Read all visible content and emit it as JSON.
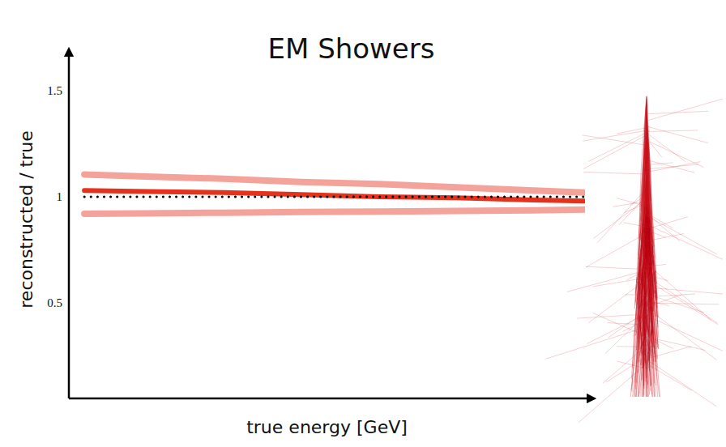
{
  "chart_data": {
    "type": "line",
    "title": "EM Showers",
    "x_label": "true energy [GeV]",
    "y_label": "reconstructed / true",
    "x": [
      3,
      15,
      30,
      45,
      60,
      75,
      90,
      100
    ],
    "series": [
      {
        "color": "#f4a39b",
        "values": [
          1.105,
          1.095,
          1.085,
          1.07,
          1.06,
          1.045,
          1.03,
          1.02
        ]
      },
      {
        "color": "#f4a39b",
        "values": [
          0.92,
          0.922,
          0.925,
          0.928,
          0.93,
          0.933,
          0.936,
          0.94
        ]
      },
      {
        "color": "#e5321c",
        "values": [
          1.03,
          1.025,
          1.02,
          1.01,
          1.0,
          0.995,
          0.985,
          0.98
        ]
      },
      {
        "color": "#000000",
        "line_style": "dotted",
        "values": [
          1,
          1,
          1,
          1,
          1,
          1,
          1,
          1
        ]
      }
    ],
    "xlim": [
      0,
      100
    ],
    "ylim": [
      0.05,
      1.66
    ],
    "yticks": [
      0.5,
      1,
      1.5
    ],
    "tick_labels": "y",
    "grid": false
  }
}
